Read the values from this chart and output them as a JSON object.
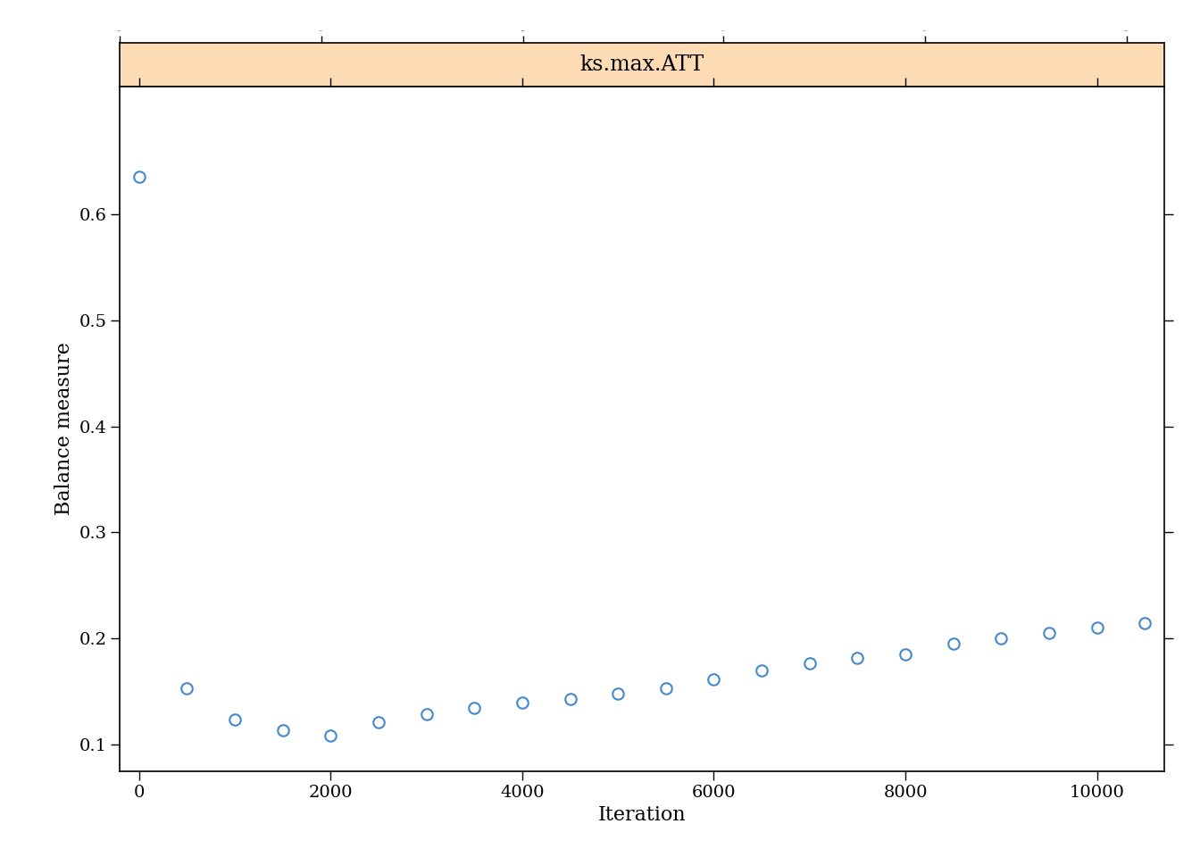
{
  "title": "ks.max.ATT",
  "xlabel": "Iteration",
  "ylabel": "Balance measure",
  "title_bg_color": "#FDDCB5",
  "title_border_color": "#000000",
  "marker_color": "#4488CC",
  "marker_facecolor": "none",
  "background_color": "#FFFFFF",
  "x_data": [
    0,
    500,
    1000,
    1500,
    2000,
    2500,
    3000,
    3500,
    4000,
    4500,
    5000,
    5500,
    6000,
    6500,
    7000,
    7500,
    8000,
    8500,
    9000,
    9500,
    10000,
    10500
  ],
  "y_data": [
    0.635,
    0.153,
    0.124,
    0.114,
    0.109,
    0.121,
    0.129,
    0.135,
    0.14,
    0.143,
    0.148,
    0.153,
    0.162,
    0.17,
    0.177,
    0.182,
    0.185,
    0.195,
    0.2,
    0.205,
    0.21,
    0.215
  ],
  "xlim": [
    -200,
    10700
  ],
  "ylim": [
    0.075,
    0.72
  ],
  "xticks": [
    0,
    2000,
    4000,
    6000,
    8000,
    10000
  ],
  "yticks": [
    0.1,
    0.2,
    0.3,
    0.4,
    0.5,
    0.6
  ],
  "marker_size": 9,
  "marker_linewidth": 1.5,
  "title_fontsize": 17,
  "axis_label_fontsize": 16,
  "tick_fontsize": 14
}
